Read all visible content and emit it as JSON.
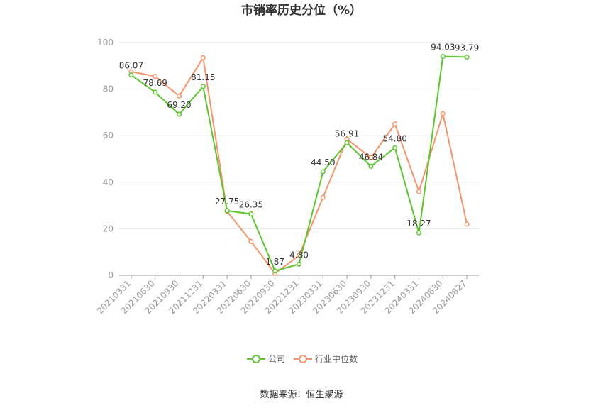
{
  "chart_data": {
    "type": "line",
    "title": "市销率历史分位（%）",
    "source": "数据来源：恒生聚源",
    "categories": [
      "20210331",
      "20210630",
      "20210930",
      "20211231",
      "20220331",
      "20220630",
      "20220930",
      "20221231",
      "20230331",
      "20230630",
      "20230930",
      "20231231",
      "20240331",
      "20240630",
      "20240827"
    ],
    "ylim": [
      0,
      100
    ],
    "yticks": [
      0,
      20,
      40,
      60,
      80,
      100
    ],
    "grid": true,
    "legend_position": "bottom",
    "series": [
      {
        "name": "公司",
        "color": "#5cc52f",
        "values": [
          86.07,
          78.69,
          69.2,
          81.15,
          27.75,
          26.35,
          1.87,
          4.8,
          44.5,
          56.91,
          46.84,
          54.8,
          18.27,
          94.03,
          93.79
        ],
        "labels": [
          "86.07",
          "78.69",
          "69.20",
          "81.15",
          "27.75",
          "26.35",
          "1.87",
          "4.80",
          "44.50",
          "56.91",
          "46.84",
          "54.80",
          "18.27",
          "94.03",
          "93.79"
        ]
      },
      {
        "name": "行业中位数",
        "color": "#f5946a",
        "values": [
          87.5,
          85.5,
          77.0,
          93.5,
          27.5,
          14.5,
          0.8,
          8.5,
          33.5,
          58.5,
          50.5,
          65.0,
          36.0,
          69.5,
          22.0
        ]
      }
    ]
  }
}
